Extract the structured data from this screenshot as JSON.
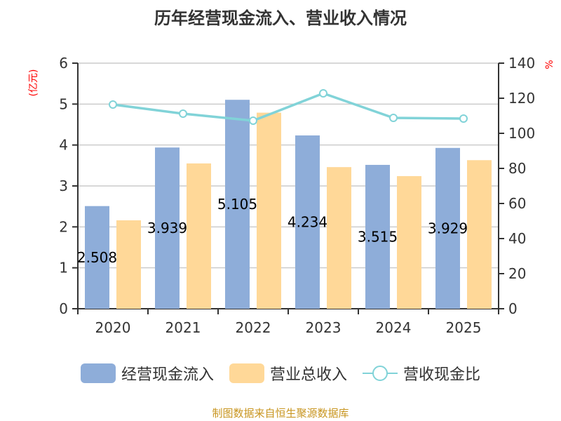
{
  "title": "历年经营现金流入、营业收入情况",
  "left_axis": {
    "unit": "(亿元)",
    "ticks": [
      "0",
      "1",
      "2",
      "3",
      "4",
      "5",
      "6"
    ]
  },
  "right_axis": {
    "unit": "%",
    "ticks": [
      "0",
      "20",
      "40",
      "60",
      "80",
      "100",
      "120",
      "140"
    ]
  },
  "legend": {
    "items": [
      {
        "label": "经营现金流入",
        "color": "#8eadd9",
        "type": "bar"
      },
      {
        "label": "营业总收入",
        "color": "#ffd898",
        "type": "bar"
      },
      {
        "label": "营收现金比",
        "color": "#81d3d8",
        "type": "line"
      }
    ]
  },
  "source": "制图数据来自恒生聚源数据库",
  "chart_data": {
    "type": "bar",
    "title": "历年经营现金流入、营业收入情况",
    "categories": [
      "2020",
      "2021",
      "2022",
      "2023",
      "2024",
      "2025"
    ],
    "series": [
      {
        "name": "经营现金流入",
        "type": "bar",
        "axis": "left",
        "color": "#8eadd9",
        "values": [
          2.508,
          3.939,
          5.105,
          4.234,
          3.515,
          3.929
        ],
        "labels_shown": true
      },
      {
        "name": "营业总收入",
        "type": "bar",
        "axis": "left",
        "color": "#ffd898",
        "values": [
          2.16,
          3.55,
          4.79,
          3.46,
          3.24,
          3.63
        ]
      },
      {
        "name": "营收现金比",
        "type": "line",
        "axis": "right",
        "color": "#81d3d8",
        "values": [
          116.4,
          111.2,
          107.2,
          122.8,
          108.8,
          108.4
        ]
      }
    ],
    "xlabel": "",
    "ylabel": "(亿元)",
    "y2label": "%",
    "ylim": [
      0,
      6
    ],
    "y2lim": [
      0,
      140
    ],
    "grid": true,
    "legend_position": "bottom"
  }
}
